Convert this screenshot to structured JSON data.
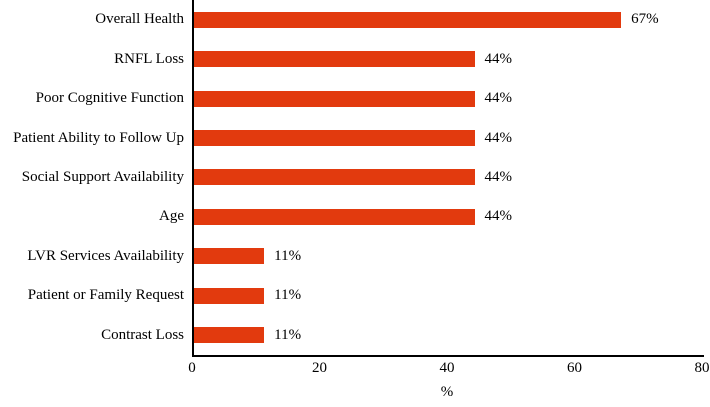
{
  "chart_data": {
    "type": "bar",
    "orientation": "horizontal",
    "categories": [
      "Overall Health",
      "RNFL Loss",
      "Poor Cognitive Function",
      "Patient Ability to Follow Up",
      "Social Support Availability",
      "Age",
      "LVR Services Availability",
      "Patient or Family Request",
      "Contrast Loss"
    ],
    "values": [
      67,
      44,
      44,
      44,
      44,
      44,
      11,
      11,
      11
    ],
    "value_labels": [
      "67%",
      "44%",
      "44%",
      "44%",
      "44%",
      "44%",
      "11%",
      "11%",
      "11%"
    ],
    "title": "",
    "xlabel": "%",
    "ylabel": "",
    "x_ticks": [
      0,
      20,
      40,
      60,
      80
    ],
    "xlim": [
      0,
      80
    ],
    "grid": false,
    "legend": false,
    "bar_color": "#e23a0e",
    "axis_color": "#000000",
    "text_color": "#000000",
    "background_color": "#ffffff"
  }
}
